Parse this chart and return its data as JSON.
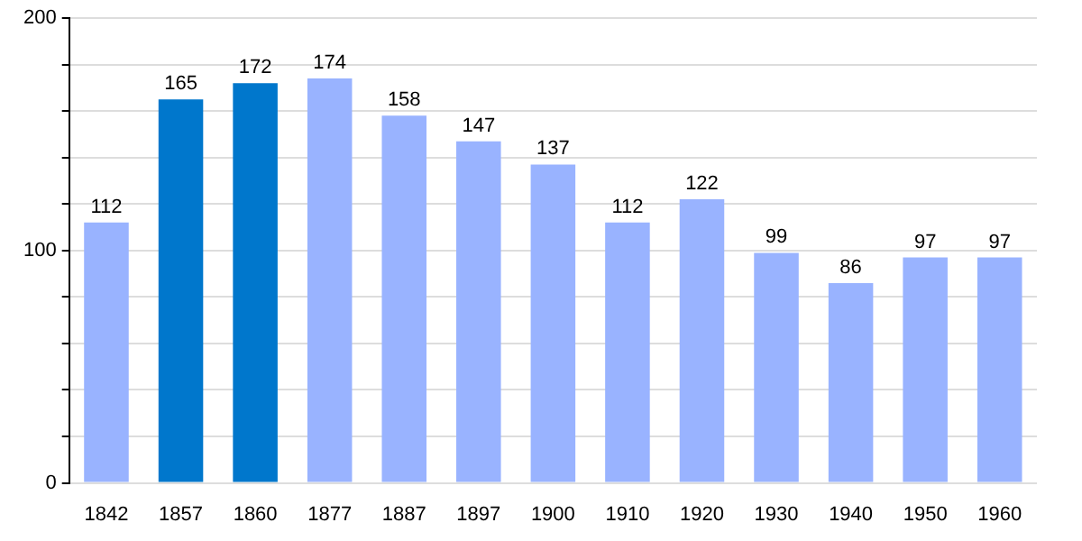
{
  "chart_data": {
    "type": "bar",
    "categories": [
      "1842",
      "1857",
      "1860",
      "1877",
      "1887",
      "1897",
      "1900",
      "1910",
      "1920",
      "1930",
      "1940",
      "1950",
      "1960"
    ],
    "values": [
      112,
      165,
      172,
      174,
      158,
      147,
      137,
      112,
      122,
      99,
      86,
      97,
      97
    ],
    "colors": [
      "#99b3ff",
      "#0077cc",
      "#0077cc",
      "#99b3ff",
      "#99b3ff",
      "#99b3ff",
      "#99b3ff",
      "#99b3ff",
      "#99b3ff",
      "#99b3ff",
      "#99b3ff",
      "#99b3ff",
      "#99b3ff"
    ],
    "ylim": [
      0,
      200
    ],
    "yticks": [
      0,
      {
        "value": 20,
        "label": null
      },
      {
        "value": 40,
        "label": null
      },
      {
        "value": 60,
        "label": null
      },
      {
        "value": 80,
        "label": null
      },
      100,
      {
        "value": 120,
        "label": null
      },
      {
        "value": 140,
        "label": null
      },
      {
        "value": 160,
        "label": null
      },
      {
        "value": 180,
        "label": null
      },
      200
    ],
    "grid": "y",
    "data_labels": true
  }
}
